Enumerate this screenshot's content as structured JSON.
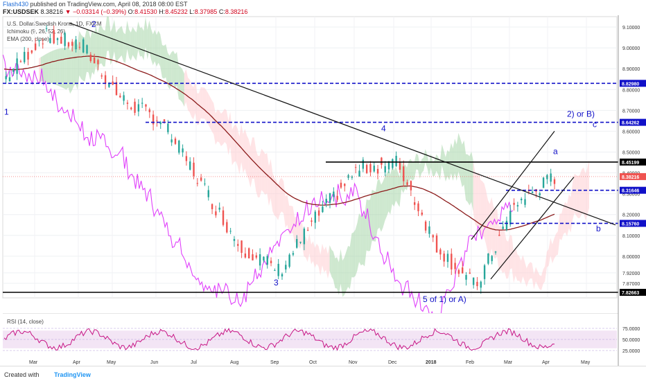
{
  "header": {
    "user": "Flash430",
    "published": "published on TradingView.com, April 08, 2018 08:00 EST",
    "symbol": "FX:USDSEK",
    "triangle": "▼",
    "last": "8.38216",
    "change": "−0.03314 (−0.39%)",
    "o_label": "O:",
    "o": "8.41530",
    "h_label": "H:",
    "h": "8.45232",
    "l_label": "L:",
    "l": "8.37985",
    "c_label": "C:",
    "c": "8.38216"
  },
  "legend": {
    "title": "U.S. Dollar/Swedish Krona, 1D, FXCM",
    "ichimoku": "Ichimoku (9, 26, 52, 26)",
    "ema": "EMA (200, close)"
  },
  "rsi": {
    "label": "RSI (14, close)",
    "ticks": [
      "75.0000",
      "50.0000",
      "25.0000"
    ]
  },
  "footer": {
    "created": "Created with",
    "brand": "TradingView"
  },
  "colors": {
    "up": "#26a69a",
    "down": "#ef5350",
    "ema": "#8b1a1a",
    "rsi": "#c71585",
    "lagging": "#e040fb",
    "blue_level": "#1010c8",
    "cloud_bull": "#a5d6a7",
    "cloud_bear": "#ffcdd2"
  },
  "chart_data": {
    "type": "candlestick",
    "price_axis": {
      "ylim": [
        7.8,
        9.15
      ],
      "ticks": [
        "9.10000",
        "9.00000",
        "8.90000",
        "8.80000",
        "8.70000",
        "8.60000",
        "8.50000",
        "8.40000",
        "8.30000",
        "8.20000",
        "8.10000",
        "8.00000",
        "7.92000",
        "7.87000"
      ]
    },
    "x_axis": {
      "ticks": [
        "Mar",
        "Apr",
        "May",
        "Jun",
        "Jul",
        "Aug",
        "Sep",
        "Oct",
        "Nov",
        "Dec",
        "2018",
        "Feb",
        "Mar",
        "Apr",
        "May"
      ]
    },
    "last_price": 8.38216,
    "horizontal_levels": [
      {
        "value": 8.8298,
        "label": "8.82980",
        "style": "dashed",
        "color": "#1010c8"
      },
      {
        "value": 8.64262,
        "label": "8.64262",
        "style": "dashed",
        "color": "#1010c8"
      },
      {
        "value": 8.45199,
        "label": "8.45199",
        "style": "solid",
        "color": "#000000"
      },
      {
        "value": 8.31646,
        "label": "8.31646",
        "style": "dashed",
        "color": "#1010c8"
      },
      {
        "value": 8.1576,
        "label": "8.15760",
        "style": "dashed",
        "color": "#1010c8"
      },
      {
        "value": 7.82663,
        "label": "7.82663",
        "style": "solid",
        "color": "#000000"
      }
    ],
    "annotations": [
      "1",
      "2",
      "3",
      "4",
      "5 of 1) or A)",
      "2) or B)",
      "a",
      "b",
      "c"
    ],
    "key_points": [
      {
        "date": "2017-02",
        "price": 8.85
      },
      {
        "date": "2017-03",
        "price": 9.06
      },
      {
        "date": "2017-04",
        "price": 9.01
      },
      {
        "date": "2017-05",
        "price": 8.75
      },
      {
        "date": "2017-06",
        "price": 8.65
      },
      {
        "date": "2017-07",
        "price": 8.35
      },
      {
        "date": "2017-08",
        "price": 8.05
      },
      {
        "date": "2017-09",
        "price": 7.93
      },
      {
        "date": "2017-10",
        "price": 8.2
      },
      {
        "date": "2017-11",
        "price": 8.42
      },
      {
        "date": "2017-12",
        "price": 8.45
      },
      {
        "date": "2018-01",
        "price": 8.05
      },
      {
        "date": "2018-02",
        "price": 7.85
      },
      {
        "date": "2018-03",
        "price": 8.25
      },
      {
        "date": "2018-04",
        "price": 8.38
      }
    ]
  }
}
